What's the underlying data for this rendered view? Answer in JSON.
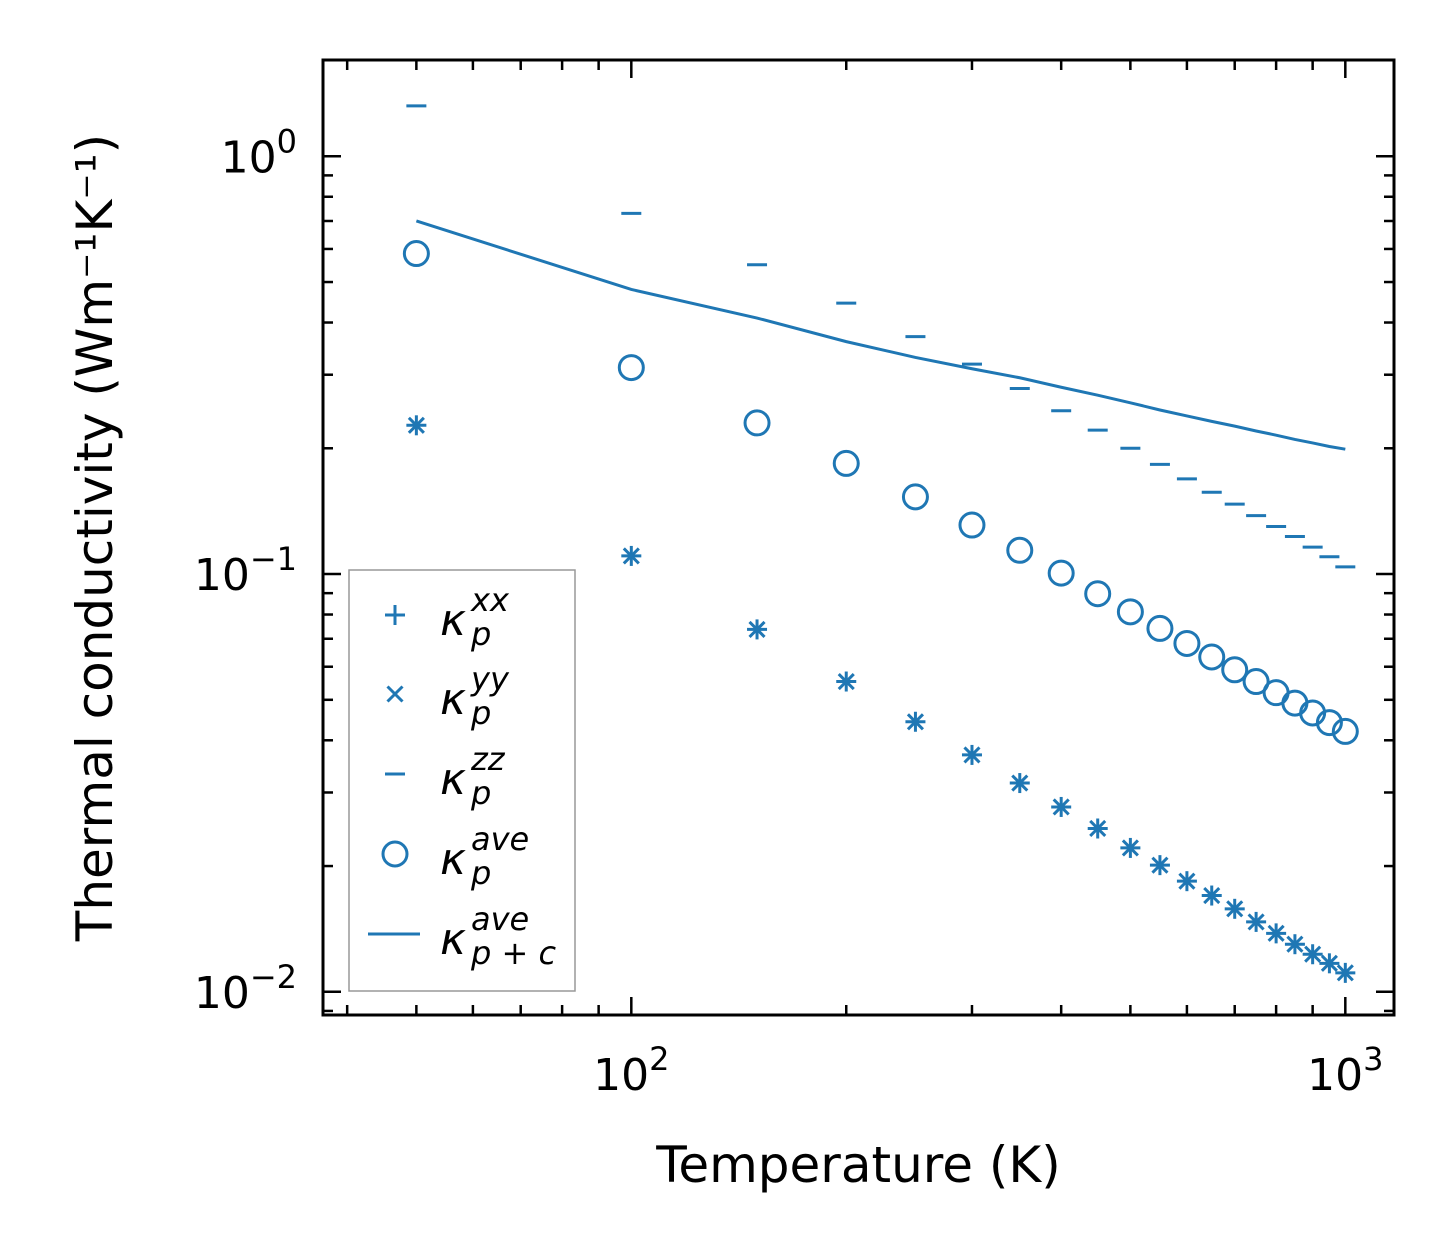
{
  "chart_data": {
    "type": "scatter",
    "xscale": "log",
    "yscale": "log",
    "xlabel": "Temperature (K)",
    "ylabel": "Thermal conductivity (Wm⁻¹K⁻¹)",
    "xlim": [
      37,
      1170
    ],
    "ylim": [
      0.0088,
      1.7
    ],
    "xticks": [
      {
        "value": 100,
        "base": "10",
        "exp": "2"
      },
      {
        "value": 1000,
        "base": "10",
        "exp": "3"
      }
    ],
    "yticks": [
      {
        "value": 0.01,
        "base": "10",
        "exp": "−2"
      },
      {
        "value": 0.1,
        "base": "10",
        "exp": "−1"
      },
      {
        "value": 1,
        "base": "10",
        "exp": "0"
      }
    ],
    "x": [
      50,
      100,
      150,
      200,
      250,
      300,
      350,
      400,
      450,
      500,
      550,
      600,
      650,
      700,
      750,
      800,
      850,
      900,
      950,
      1000
    ],
    "color": "#1f77b4",
    "series": [
      {
        "name": "kxx",
        "marker": "plus",
        "values": [
          0.227,
          0.1105,
          0.0737,
          0.0553,
          0.0443,
          0.0369,
          0.0316,
          0.0277,
          0.0246,
          0.0221,
          0.0201,
          0.0184,
          0.017,
          0.0158,
          0.0147,
          0.0138,
          0.013,
          0.0123,
          0.0117,
          0.0111
        ]
      },
      {
        "name": "kyy",
        "marker": "x",
        "values": [
          0.227,
          0.1105,
          0.0737,
          0.0553,
          0.0443,
          0.0369,
          0.0316,
          0.0277,
          0.0246,
          0.0221,
          0.0201,
          0.0184,
          0.017,
          0.0158,
          0.0147,
          0.0138,
          0.013,
          0.0123,
          0.0117,
          0.0111
        ]
      },
      {
        "name": "kzz",
        "marker": "hline",
        "values": [
          1.32,
          0.73,
          0.55,
          0.445,
          0.37,
          0.318,
          0.278,
          0.246,
          0.221,
          0.2,
          0.183,
          0.169,
          0.157,
          0.147,
          0.138,
          0.13,
          0.123,
          0.116,
          0.11,
          0.104
        ]
      },
      {
        "name": "kave",
        "marker": "circle",
        "values": [
          0.585,
          0.312,
          0.23,
          0.184,
          0.153,
          0.131,
          0.114,
          0.1005,
          0.0897,
          0.0812,
          0.0741,
          0.0682,
          0.0633,
          0.059,
          0.0553,
          0.052,
          0.0491,
          0.0465,
          0.0441,
          0.042
        ]
      },
      {
        "name": "kave_pc",
        "marker": "line",
        "values": [
          0.7,
          0.48,
          0.41,
          0.36,
          0.33,
          0.31,
          0.295,
          0.28,
          0.268,
          0.257,
          0.247,
          0.239,
          0.232,
          0.226,
          0.22,
          0.215,
          0.21,
          0.206,
          0.202,
          0.199
        ]
      }
    ],
    "legend": {
      "position": "lower-left",
      "entries": [
        {
          "marker": "plus",
          "base": "κ",
          "sup": "xx",
          "sub": "p"
        },
        {
          "marker": "x",
          "base": "κ",
          "sup": "yy",
          "sub": "p"
        },
        {
          "marker": "hline",
          "base": "κ",
          "sup": "zz",
          "sub": "p"
        },
        {
          "marker": "circle",
          "base": "κ",
          "sup": "ave",
          "sub": "p"
        },
        {
          "marker": "line",
          "base": "κ",
          "sup": "ave",
          "sub": "p + c"
        }
      ]
    }
  }
}
